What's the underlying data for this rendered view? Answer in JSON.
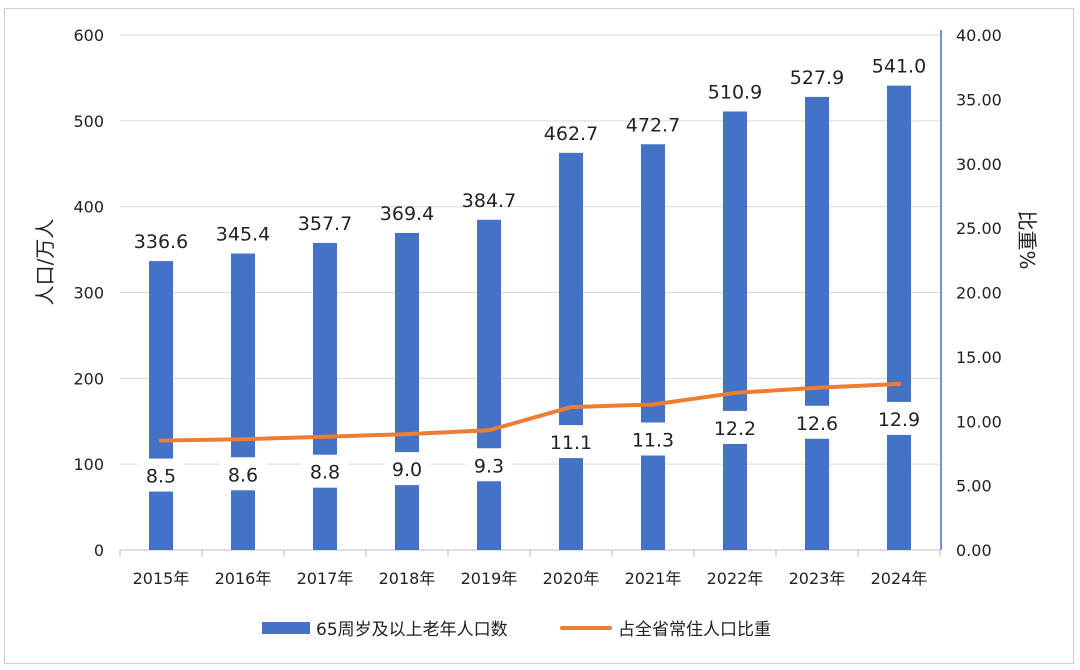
{
  "chart_data": {
    "type": "bar+line",
    "categories": [
      "2015年",
      "2016年",
      "2017年",
      "2018年",
      "2019年",
      "2020年",
      "2021年",
      "2022年",
      "2023年",
      "2024年"
    ],
    "series": [
      {
        "name": "65周岁及以上老年人口数",
        "type": "bar",
        "axis": "left",
        "color": "#4472C4",
        "values": [
          336.6,
          345.4,
          357.7,
          369.4,
          384.7,
          462.7,
          472.7,
          510.9,
          527.9,
          541.0
        ],
        "labels": [
          "336.6",
          "345.4",
          "357.7",
          "369.4",
          "384.7",
          "462.7",
          "472.7",
          "510.9",
          "527.9",
          "541.0"
        ]
      },
      {
        "name": "占全省常住人口比重",
        "type": "line",
        "axis": "right",
        "color": "#ED7D31",
        "values": [
          8.5,
          8.6,
          8.8,
          9.0,
          9.3,
          11.1,
          11.3,
          12.2,
          12.6,
          12.9
        ],
        "labels": [
          "8.5",
          "8.6",
          "8.8",
          "9.0",
          "9.3",
          "11.1",
          "11.3",
          "12.2",
          "12.6",
          "12.9"
        ]
      }
    ],
    "ylabel": "人口/万人",
    "y2label": "比重%",
    "ylim": [
      0,
      600
    ],
    "y2lim": [
      0,
      40
    ],
    "yticks": [
      "0",
      "100",
      "200",
      "300",
      "400",
      "500",
      "600"
    ],
    "y2ticks": [
      "0.00",
      "5.00",
      "10.00",
      "15.00",
      "20.00",
      "25.00",
      "30.00",
      "35.00",
      "40.00"
    ],
    "grid": true,
    "legend_position": "bottom"
  }
}
